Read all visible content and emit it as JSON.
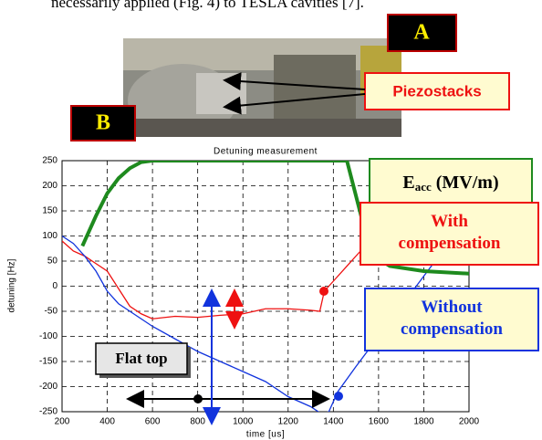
{
  "caption_text": "necessarily applied (Fig. 4) to TESLA cavities [7].",
  "photo": {
    "label": "A",
    "annotation": "Piezostacks"
  },
  "chart_data": {
    "type": "line",
    "panel_label": "B",
    "title": "Detuning measurement",
    "x_label": "time [us]",
    "y_label": "detuning [Hz]",
    "xlim": [
      200,
      2000
    ],
    "xticks": [
      200,
      400,
      600,
      800,
      1000,
      1200,
      1400,
      1600,
      1800,
      2000
    ],
    "ylim": [
      -250,
      250
    ],
    "yticks": [
      -250,
      -200,
      -150,
      -100,
      -50,
      0,
      50,
      100,
      150,
      200,
      250
    ],
    "grid": true,
    "series": [
      {
        "name": "With compensation",
        "color": "#ee1111",
        "x": [
          200,
          250,
          300,
          350,
          400,
          450,
          500,
          550,
          600,
          700,
          800,
          900,
          1000,
          1100,
          1200,
          1300,
          1340,
          1360,
          1400,
          1500,
          1600,
          1700,
          1800,
          1850
        ],
        "values": [
          90,
          70,
          60,
          45,
          30,
          -5,
          -40,
          -55,
          -65,
          -60,
          -62,
          -58,
          -55,
          -45,
          -45,
          -48,
          -50,
          -10,
          10,
          60,
          110,
          160,
          210,
          245
        ]
      },
      {
        "name": "Without compensation",
        "color": "#1133dd",
        "x": [
          200,
          250,
          300,
          350,
          400,
          450,
          500,
          600,
          700,
          800,
          900,
          1000,
          1100,
          1200,
          1300,
          1350,
          1380,
          1420,
          1500,
          1600,
          1700,
          1800,
          1900
        ],
        "values": [
          100,
          85,
          60,
          30,
          -10,
          -35,
          -50,
          -80,
          -105,
          -130,
          -150,
          -170,
          -190,
          -220,
          -240,
          -255,
          -250,
          -210,
          -160,
          -100,
          -40,
          20,
          80
        ]
      },
      {
        "name": "E",
        "name_sub": "acc",
        "name_unit": "(MV/m)",
        "color": "#1e8a1e",
        "x": [
          290,
          350,
          400,
          450,
          500,
          550,
          600,
          800,
          1000,
          1200,
          1400,
          1460,
          1500,
          1540,
          1580,
          1650,
          1800,
          2000
        ],
        "values": [
          80,
          140,
          185,
          215,
          235,
          247,
          250,
          250,
          250,
          250,
          250,
          250,
          180,
          110,
          60,
          40,
          30,
          25
        ]
      }
    ],
    "annotations": {
      "flat_top": "Flat top"
    }
  }
}
